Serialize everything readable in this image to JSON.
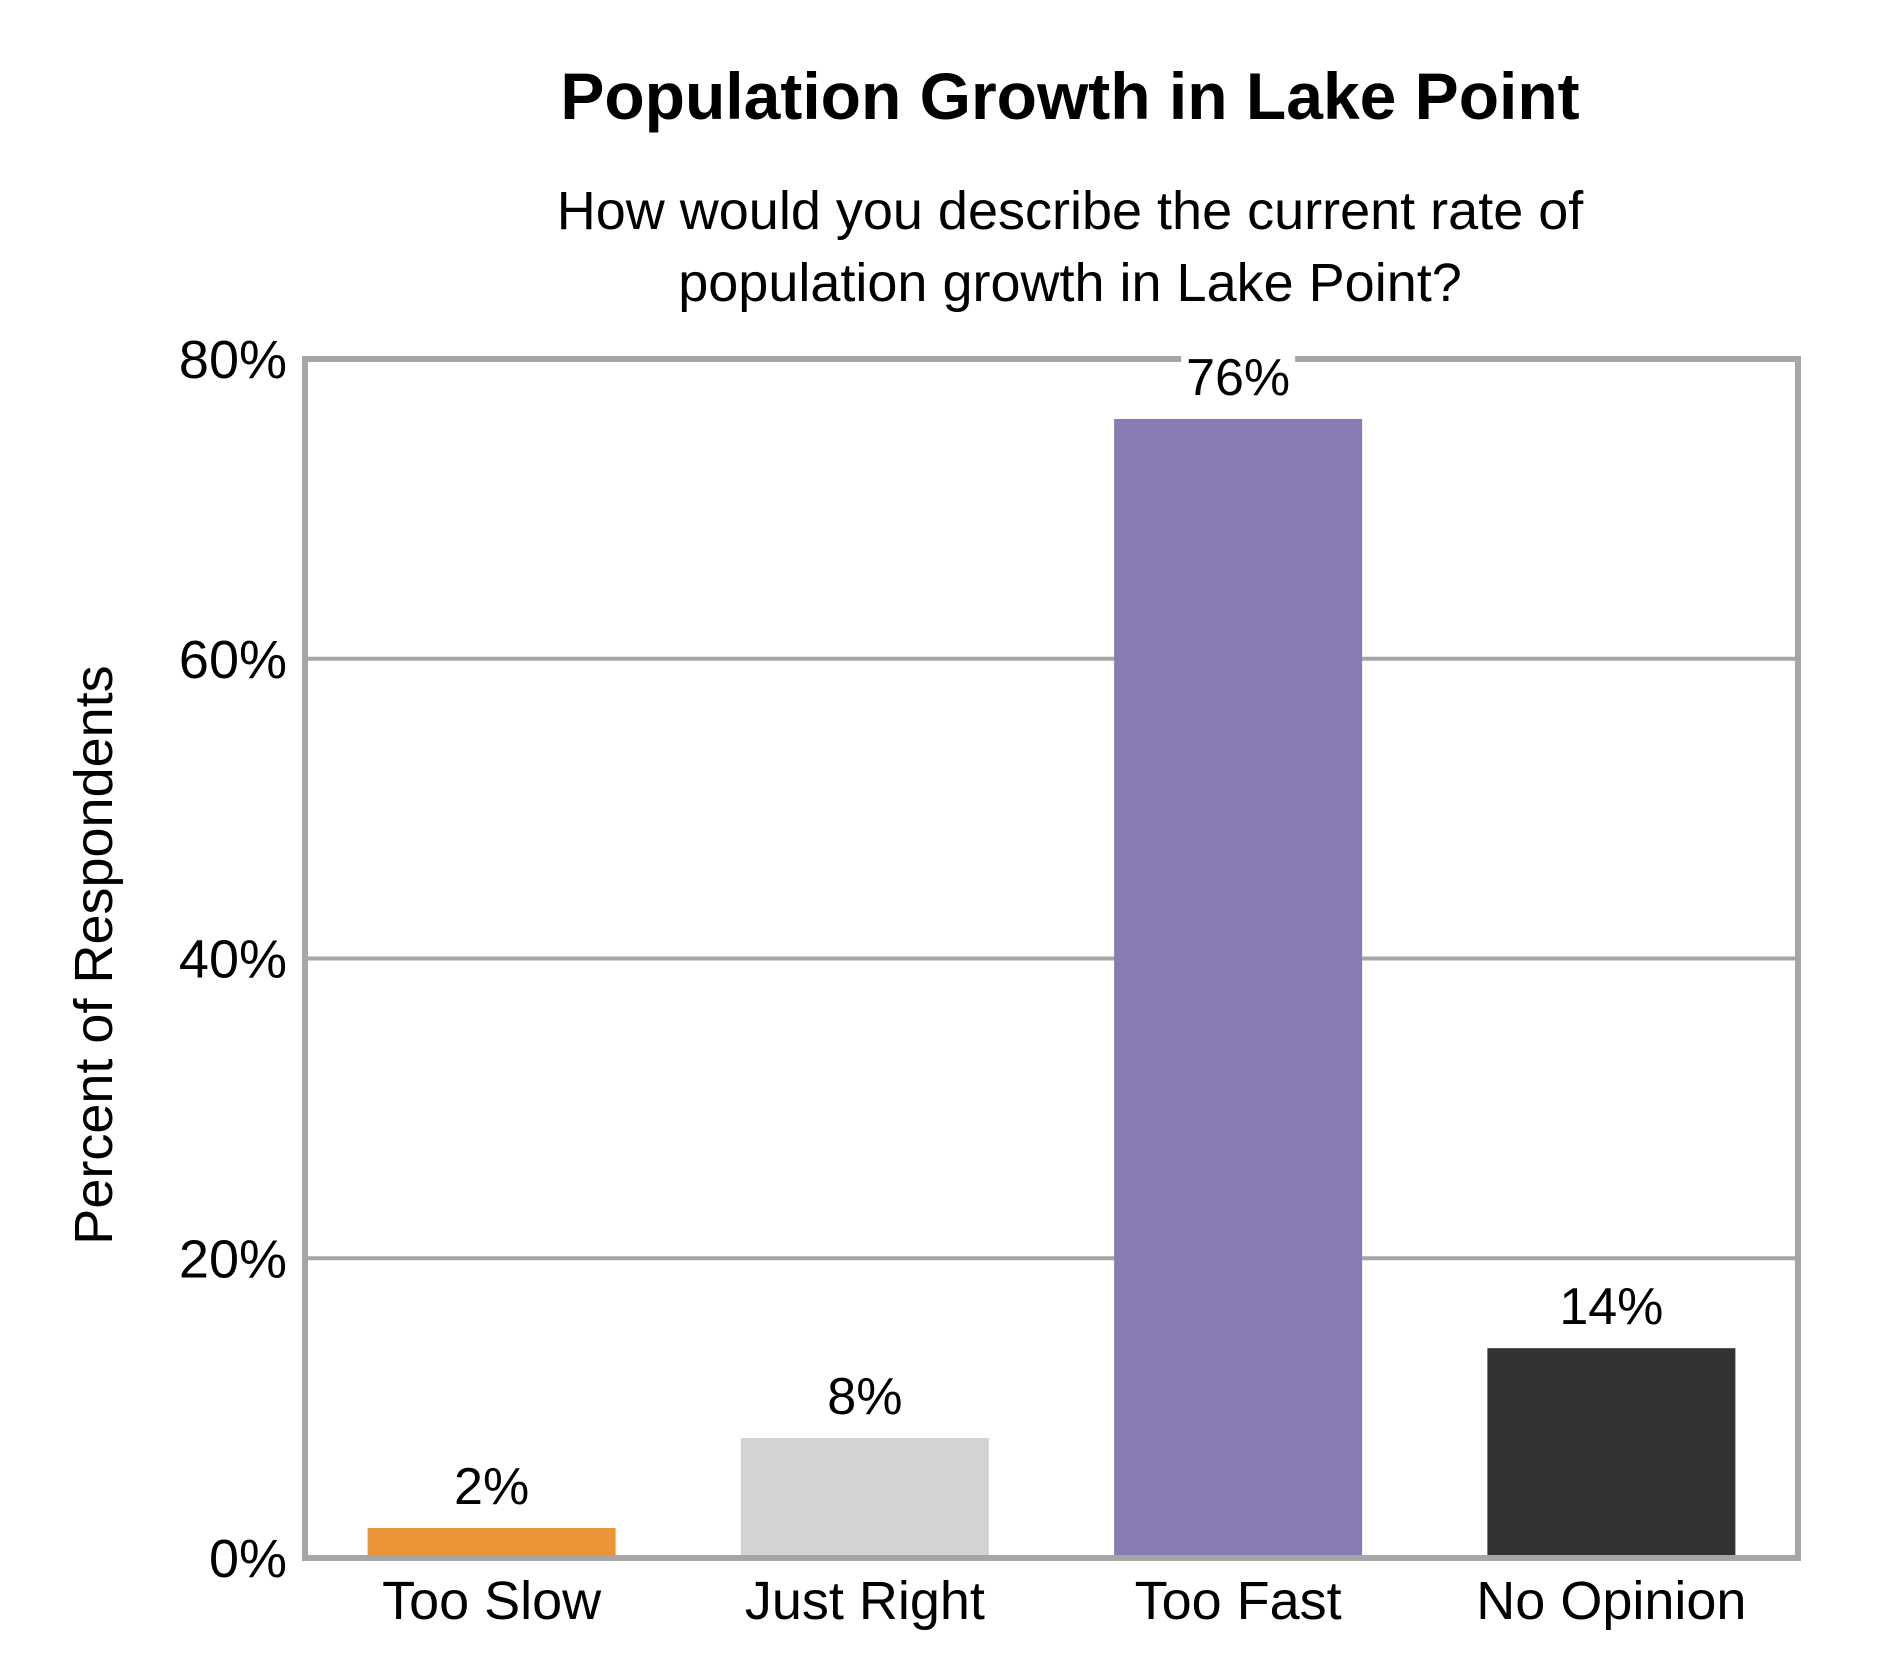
{
  "chart_data": {
    "type": "bar",
    "title": "Population Growth in Lake Point",
    "subtitle_lines": [
      "How would you describe the current rate of",
      "population growth in Lake Point?"
    ],
    "ylabel": "Percent of Respondents",
    "xlabel": "",
    "categories": [
      "Too Slow",
      "Just Right",
      "Too Fast",
      "No Opinion"
    ],
    "values": [
      2,
      8,
      76,
      14
    ],
    "value_labels": [
      "2%",
      "8%",
      "76%",
      "14%"
    ],
    "colors": [
      "#E99537",
      "#D3D3D3",
      "#897CB5",
      "#333333"
    ],
    "ylim": [
      0,
      80
    ],
    "yticks": [
      0,
      20,
      40,
      60,
      80
    ],
    "ytick_labels": [
      "0%",
      "20%",
      "40%",
      "60%",
      "80%"
    ],
    "grid": true,
    "legend": "none"
  }
}
